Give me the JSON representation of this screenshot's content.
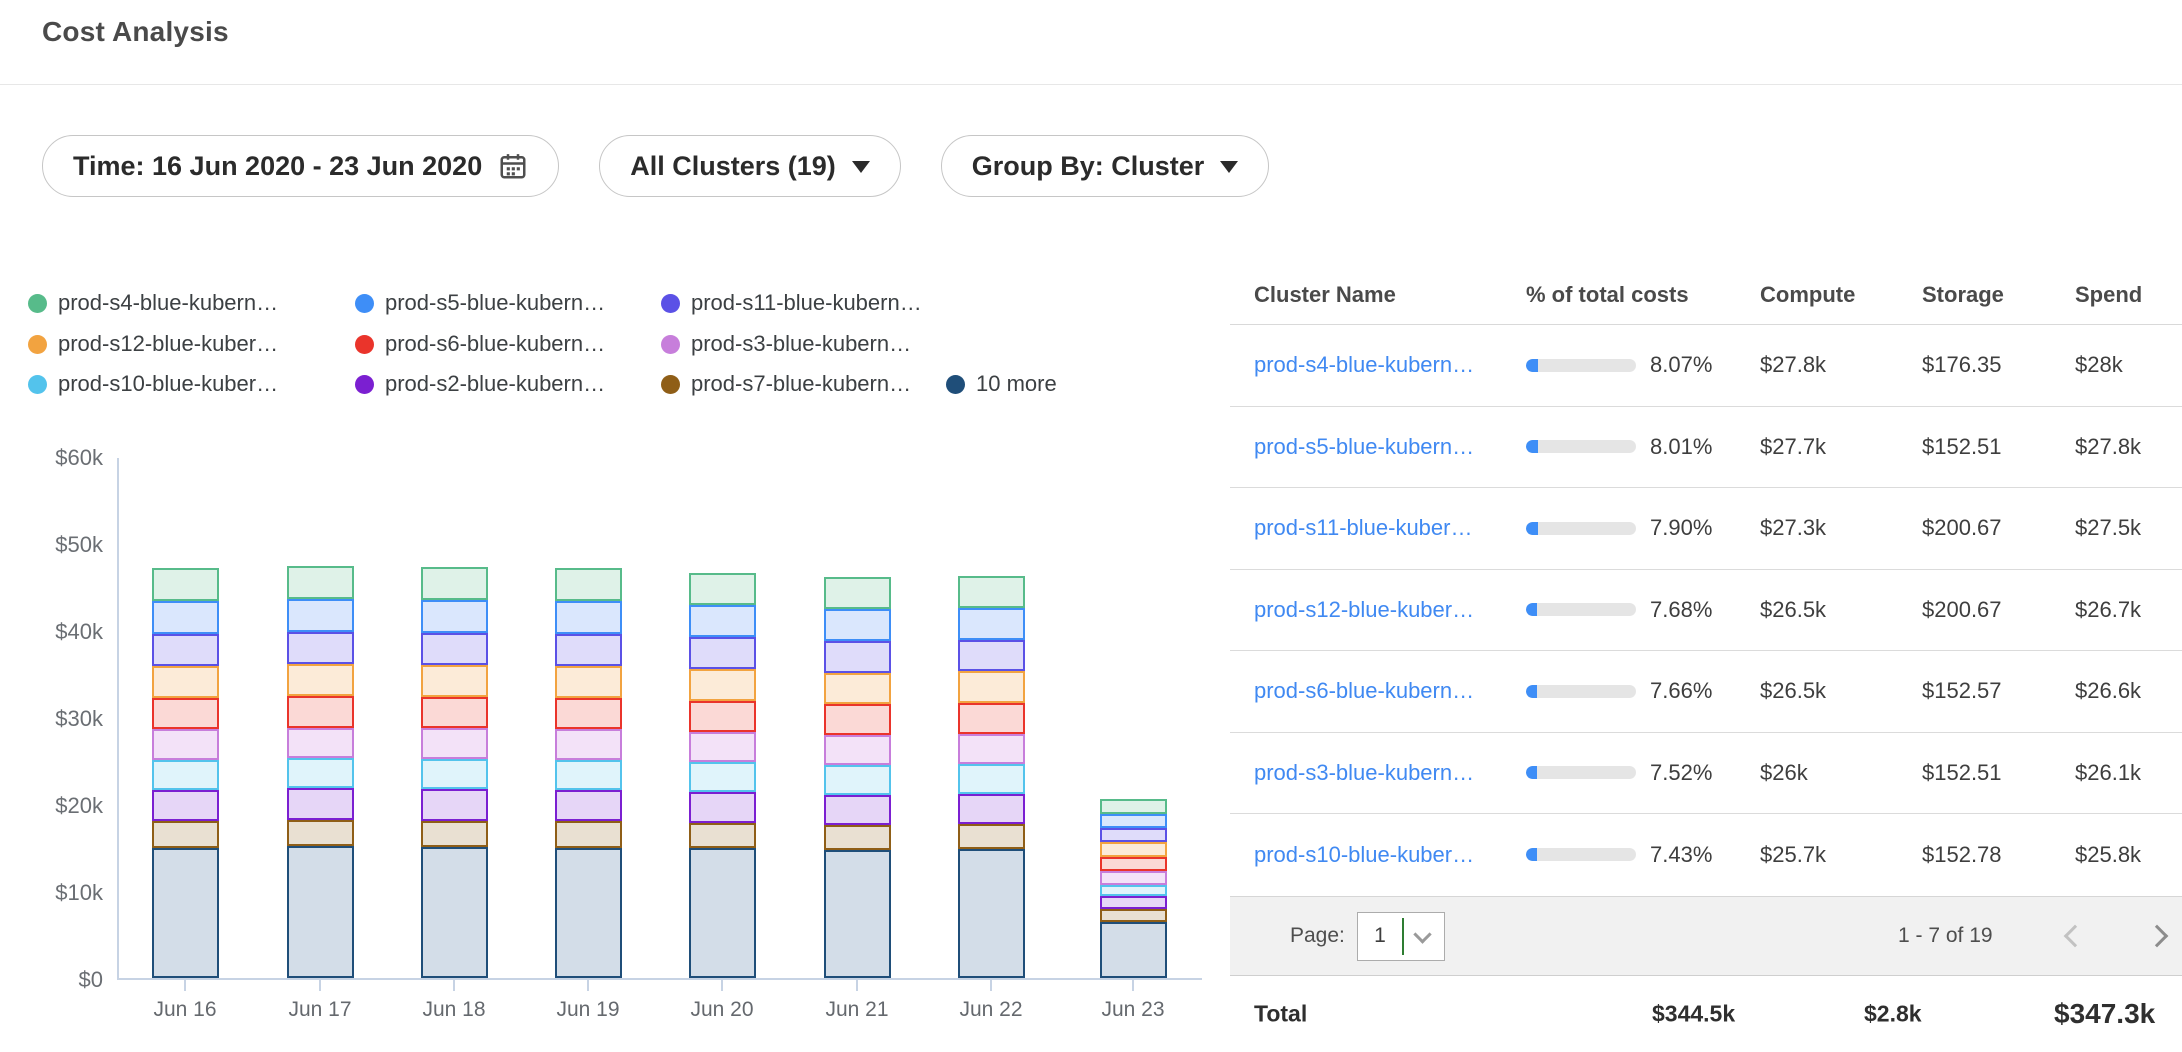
{
  "header": {
    "title": "Cost Analysis"
  },
  "filters": {
    "time": {
      "label": "Time: 16 Jun 2020 - 23 Jun 2020"
    },
    "clusters": {
      "label": "All Clusters (19)"
    },
    "group_by": {
      "label": "Group By: Cluster"
    }
  },
  "legend": {
    "items": [
      {
        "label": "prod-s4-blue-kubern…",
        "color": "#57BB8A"
      },
      {
        "label": "prod-s5-blue-kubern…",
        "color": "#3E8EF7"
      },
      {
        "label": "prod-s11-blue-kubern…",
        "color": "#5B51E6"
      },
      {
        "label": "prod-s12-blue-kuber…",
        "color": "#F2A340"
      },
      {
        "label": "prod-s6-blue-kubern…",
        "color": "#EA342B"
      },
      {
        "label": "prod-s3-blue-kubern…",
        "color": "#C77EDB"
      },
      {
        "label": "prod-s10-blue-kuber…",
        "color": "#53C3EC"
      },
      {
        "label": "prod-s2-blue-kubern…",
        "color": "#7B1FD1"
      },
      {
        "label": "prod-s7-blue-kubern…",
        "color": "#8F5E17"
      },
      {
        "label": "10 more",
        "color": "#1F4E79"
      }
    ]
  },
  "chart_data": {
    "type": "bar",
    "stacked": true,
    "title": "",
    "unit": "USD thousands per day",
    "categories": [
      "Jun 16",
      "Jun 17",
      "Jun 18",
      "Jun 19",
      "Jun 20",
      "Jun 21",
      "Jun 22",
      "Jun 23"
    ],
    "ylim": [
      0,
      60
    ],
    "ytick_labels": [
      "$0",
      "$10k",
      "$20k",
      "$30k",
      "$40k",
      "$50k",
      "$60k"
    ],
    "grid": false,
    "legend_position": "top",
    "stack_order": "bottom-to-top",
    "series": [
      {
        "name": "10 more",
        "color": "#1F4E79",
        "fill": "#D3DDE8",
        "values": [
          15.0,
          15.2,
          15.1,
          15.0,
          14.9,
          14.7,
          14.8,
          6.4
        ]
      },
      {
        "name": "prod-s7-blue-kubern…",
        "color": "#8F5E17",
        "fill": "#E9E0D2",
        "values": [
          3.0,
          3.0,
          3.0,
          3.0,
          2.95,
          2.9,
          2.9,
          1.5
        ]
      },
      {
        "name": "prod-s2-blue-kubern…",
        "color": "#7B1FD1",
        "fill": "#E6D6F7",
        "values": [
          3.6,
          3.6,
          3.6,
          3.6,
          3.55,
          3.5,
          3.5,
          1.5
        ]
      },
      {
        "name": "prod-s10-blue-kuber…",
        "color": "#53C3EC",
        "fill": "#E0F4FB",
        "values": [
          3.45,
          3.45,
          3.45,
          3.45,
          3.4,
          3.4,
          3.4,
          1.3
        ]
      },
      {
        "name": "prod-s3-blue-kubern…",
        "color": "#C77EDB",
        "fill": "#F3E2F8",
        "values": [
          3.55,
          3.55,
          3.55,
          3.55,
          3.5,
          3.5,
          3.5,
          1.6
        ]
      },
      {
        "name": "prod-s6-blue-kubern…",
        "color": "#EA342B",
        "fill": "#FBD9D6",
        "values": [
          3.6,
          3.6,
          3.6,
          3.6,
          3.55,
          3.5,
          3.55,
          1.6
        ]
      },
      {
        "name": "prod-s12-blue-kuber…",
        "color": "#F2A340",
        "fill": "#FCEBD8",
        "values": [
          3.7,
          3.7,
          3.7,
          3.7,
          3.65,
          3.6,
          3.6,
          1.8
        ]
      },
      {
        "name": "prod-s11-blue-kuber…",
        "color": "#5B51E6",
        "fill": "#DFDCFA",
        "values": [
          3.7,
          3.7,
          3.7,
          3.7,
          3.65,
          3.65,
          3.65,
          1.6
        ]
      },
      {
        "name": "prod-s5-blue-kubern…",
        "color": "#3E8EF7",
        "fill": "#DAE7FD",
        "values": [
          3.75,
          3.75,
          3.75,
          3.75,
          3.7,
          3.65,
          3.65,
          1.6
        ]
      },
      {
        "name": "prod-s4-blue-kubern…",
        "color": "#57BB8A",
        "fill": "#DFF2E8",
        "values": [
          3.8,
          3.8,
          3.8,
          3.75,
          3.75,
          3.7,
          3.7,
          1.7
        ]
      }
    ]
  },
  "table": {
    "columns": [
      "Cluster Name",
      "% of total costs",
      "Compute",
      "Storage",
      "Spend"
    ],
    "rows": [
      {
        "name": "prod-s4-blue-kubern…",
        "pct": "8.07%",
        "pct_value": 8.07,
        "compute": "$27.8k",
        "storage": "$176.35",
        "spend": "$28k"
      },
      {
        "name": "prod-s5-blue-kubern…",
        "pct": "8.01%",
        "pct_value": 8.01,
        "compute": "$27.7k",
        "storage": "$152.51",
        "spend": "$27.8k"
      },
      {
        "name": "prod-s11-blue-kuber…",
        "pct": "7.90%",
        "pct_value": 7.9,
        "compute": "$27.3k",
        "storage": "$200.67",
        "spend": "$27.5k"
      },
      {
        "name": "prod-s12-blue-kuber…",
        "pct": "7.68%",
        "pct_value": 7.68,
        "compute": "$26.5k",
        "storage": "$200.67",
        "spend": "$26.7k"
      },
      {
        "name": "prod-s6-blue-kubern…",
        "pct": "7.66%",
        "pct_value": 7.66,
        "compute": "$26.5k",
        "storage": "$152.57",
        "spend": "$26.6k"
      },
      {
        "name": "prod-s3-blue-kubern…",
        "pct": "7.52%",
        "pct_value": 7.52,
        "compute": "$26k",
        "storage": "$152.51",
        "spend": "$26.1k"
      },
      {
        "name": "prod-s10-blue-kuber…",
        "pct": "7.43%",
        "pct_value": 7.43,
        "compute": "$25.7k",
        "storage": "$152.78",
        "spend": "$25.8k"
      }
    ],
    "pagination": {
      "label": "Page:",
      "value": "1",
      "range": "1 - 7 of 19"
    },
    "total": {
      "label": "Total",
      "compute": "$344.5k",
      "storage": "$2.8k",
      "spend": "$347.3k"
    }
  }
}
